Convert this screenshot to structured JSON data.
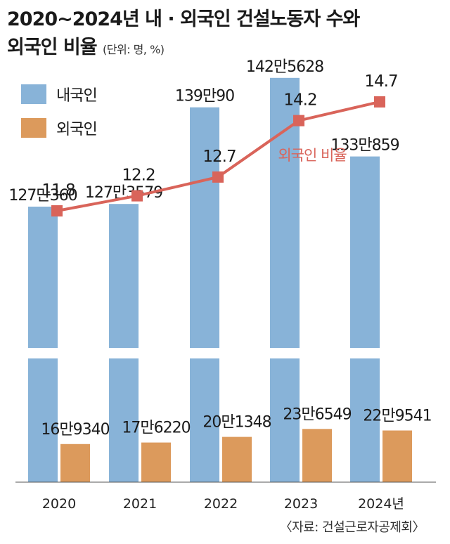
{
  "title": {
    "line1": "2020~2024년 내 · 외국인 건설노동자 수와",
    "line2": "외국인 비율",
    "unit": "(단위: 명, %)"
  },
  "legend": [
    {
      "label": "내국인",
      "color": "#88b3d8"
    },
    {
      "label": "외국인",
      "color": "#dc9a5c"
    }
  ],
  "source": "〈자료: 건설근로자공제회〉",
  "chart_data": {
    "type": "bar+line",
    "categories": [
      "2020",
      "2021",
      "2022",
      "2023",
      "2024년"
    ],
    "series": [
      {
        "name": "내국인",
        "type": "bar",
        "color": "#88b3d8",
        "values": [
          1270360,
          1273579,
          1390090,
          1425628,
          1330859
        ],
        "labels": [
          "127만360",
          "127만3579",
          "139만90",
          "142만5628",
          "133만859"
        ]
      },
      {
        "name": "외국인",
        "type": "bar",
        "color": "#dc9a5c",
        "values": [
          169340,
          176220,
          201348,
          236549,
          229541
        ],
        "labels": [
          "16만9340",
          "17만6220",
          "20만1348",
          "23만6549",
          "22만9541"
        ]
      },
      {
        "name": "외국인 비율",
        "type": "line",
        "color": "#d9645a",
        "values": [
          11.8,
          12.2,
          12.7,
          14.2,
          14.7
        ],
        "labels": [
          "11.8",
          "12.2",
          "12.7",
          "14.2",
          "14.7"
        ]
      }
    ],
    "axis_break": true
  }
}
